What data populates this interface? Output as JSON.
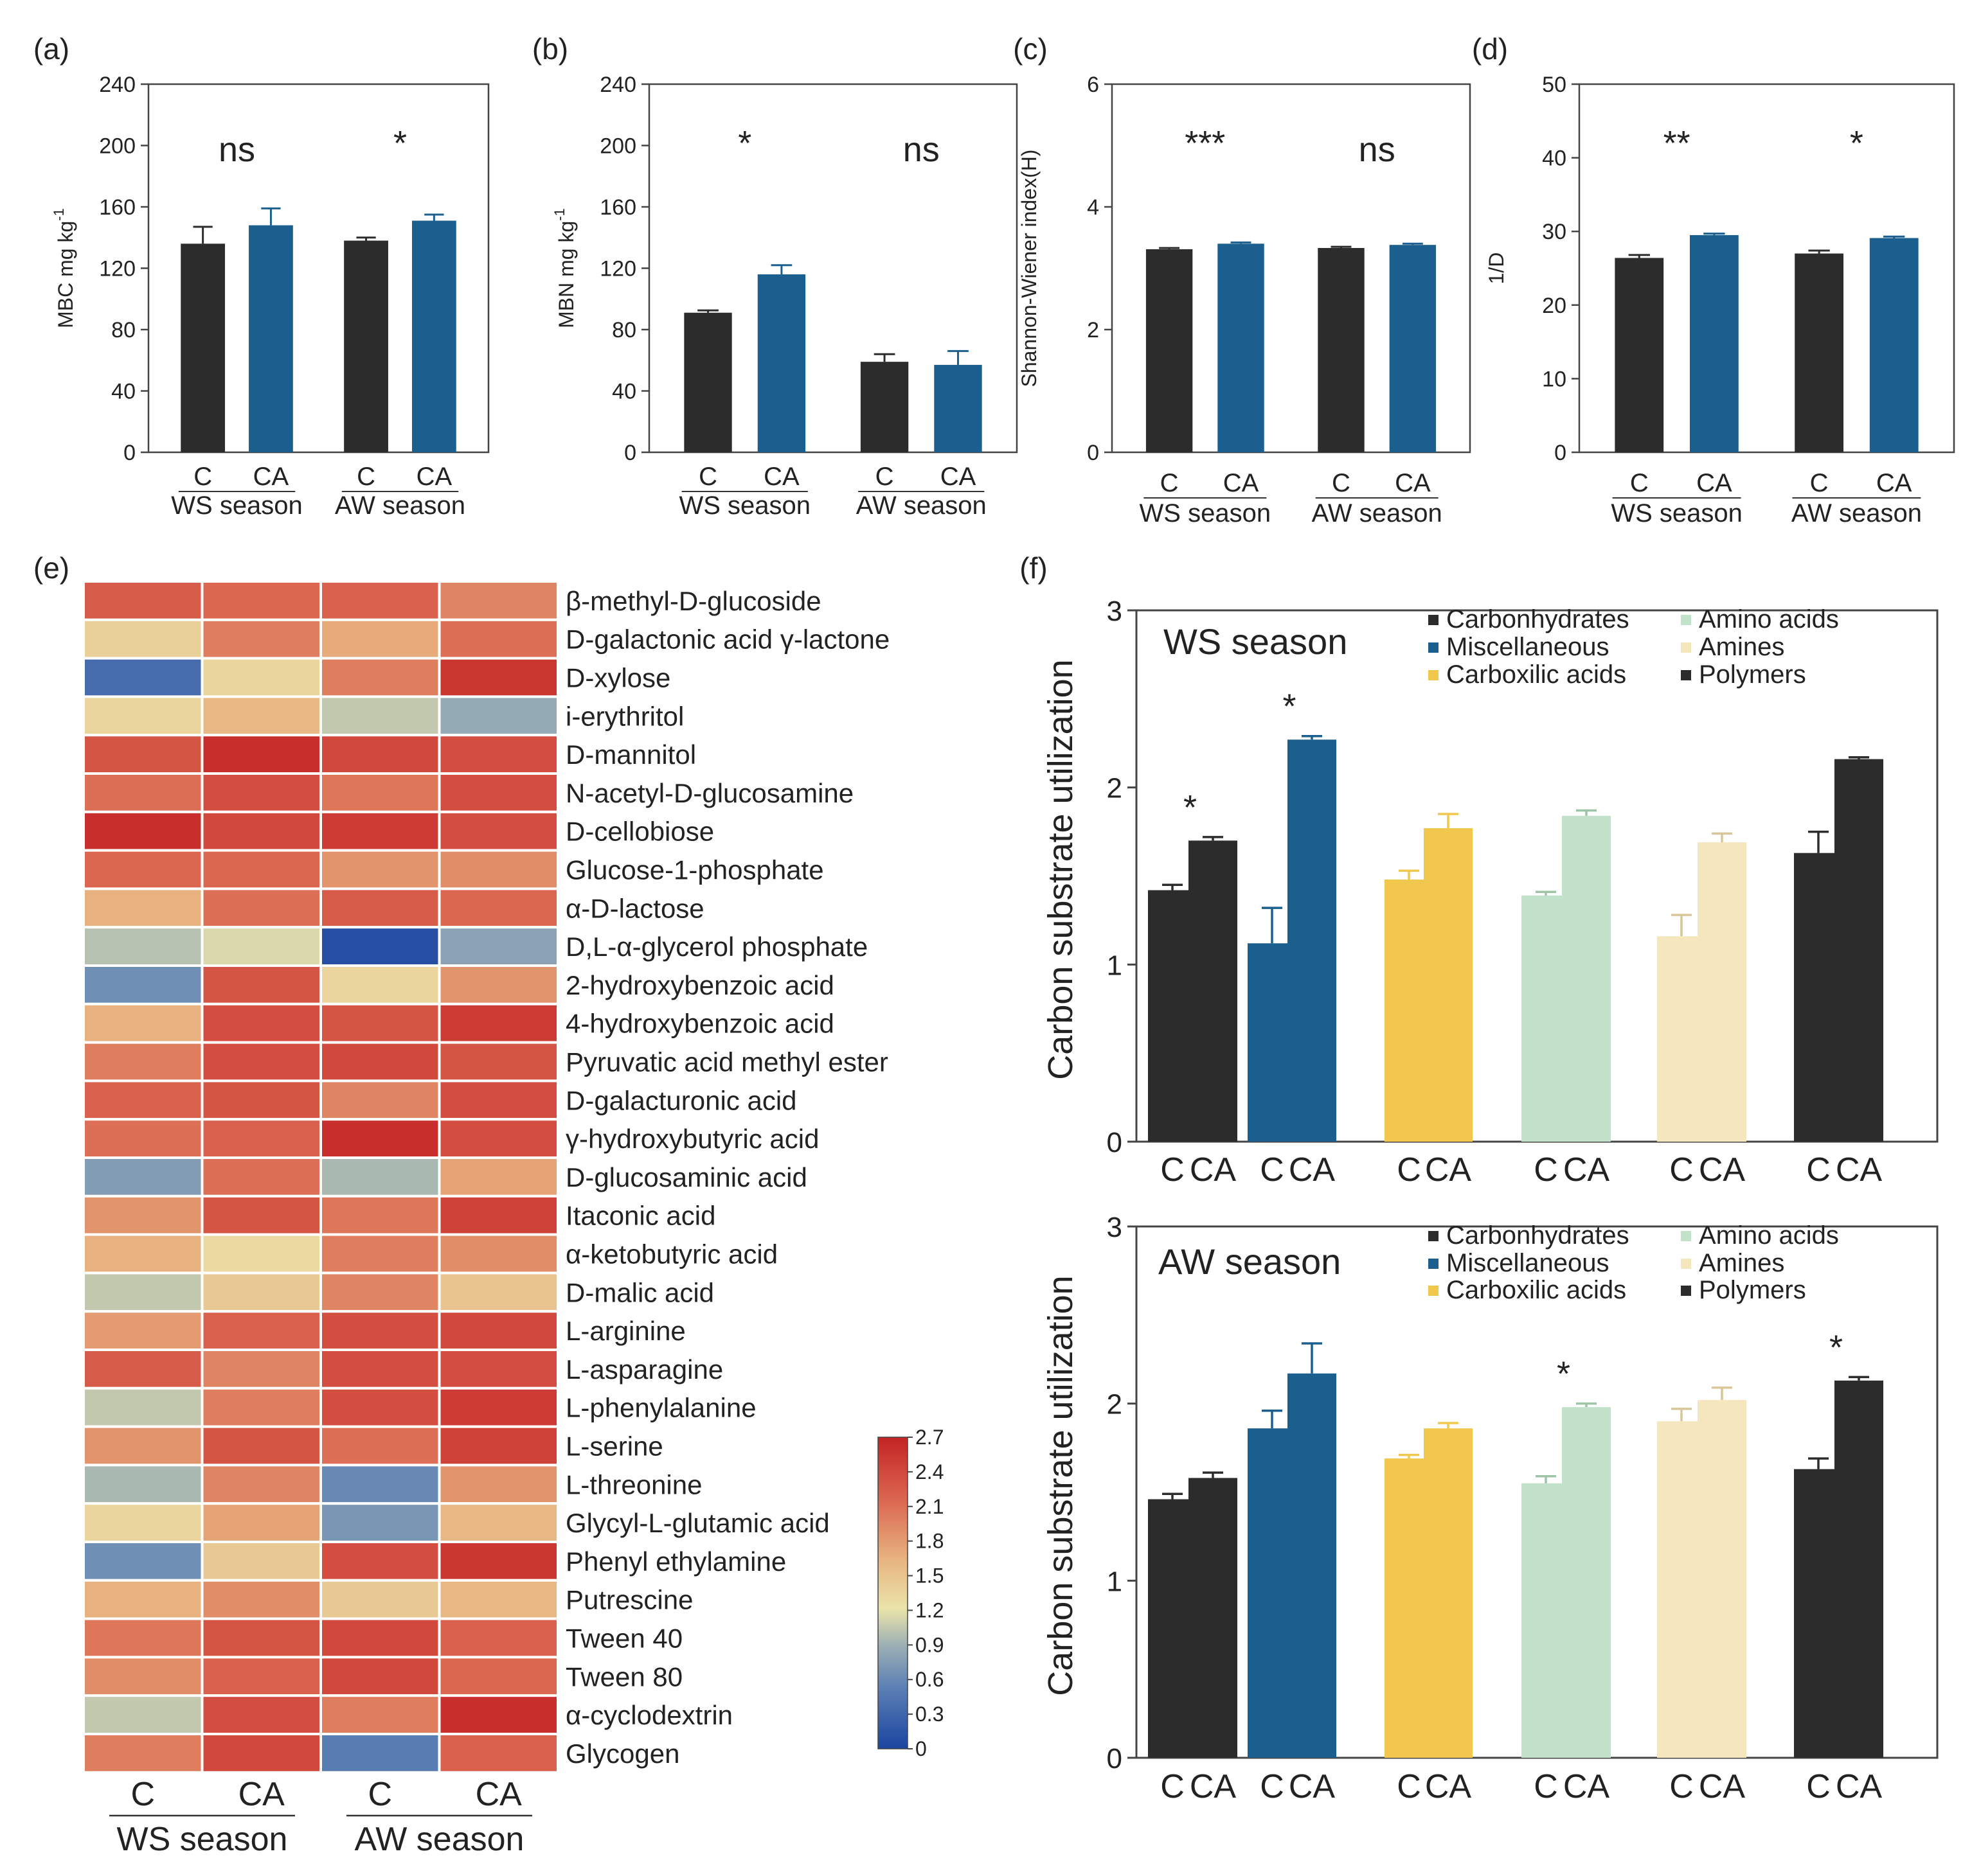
{
  "chart_data": [
    {
      "panel": "(a)",
      "type": "bar",
      "ylabel": "MBC mg kg",
      "ylabel_sup": "-1",
      "ylim": [
        0,
        240
      ],
      "yticks": [
        0,
        40,
        80,
        120,
        160,
        200,
        240
      ],
      "groups": [
        {
          "season": "WS season",
          "sig": "ns",
          "bars": [
            {
              "label": "C",
              "value": 136,
              "err": 11
            },
            {
              "label": "CA",
              "value": 148,
              "err": 11
            }
          ]
        },
        {
          "season": "AW season",
          "sig": "*",
          "bars": [
            {
              "label": "C",
              "value": 138,
              "err": 2
            },
            {
              "label": "CA",
              "value": 151,
              "err": 4
            }
          ]
        }
      ]
    },
    {
      "panel": "(b)",
      "type": "bar",
      "ylabel": "MBN mg kg",
      "ylabel_sup": "-1",
      "ylim": [
        0,
        240
      ],
      "yticks": [
        0,
        40,
        80,
        120,
        160,
        200,
        240
      ],
      "groups": [
        {
          "season": "WS season",
          "sig": "*",
          "bars": [
            {
              "label": "C",
              "value": 91,
              "err": 1.5
            },
            {
              "label": "CA",
              "value": 116,
              "err": 6
            }
          ]
        },
        {
          "season": "AW season",
          "sig": "ns",
          "bars": [
            {
              "label": "C",
              "value": 59,
              "err": 5
            },
            {
              "label": "CA",
              "value": 57,
              "err": 9
            }
          ]
        }
      ]
    },
    {
      "panel": "(c)",
      "type": "bar",
      "ylabel": "Shannon-Wiener index(H)",
      "ylabel_sup": "",
      "ylim": [
        0,
        6
      ],
      "yticks": [
        0,
        2,
        4,
        6
      ],
      "groups": [
        {
          "season": "WS season",
          "sig": "***",
          "bars": [
            {
              "label": "C",
              "value": 3.31,
              "err": 0.02
            },
            {
              "label": "CA",
              "value": 3.4,
              "err": 0.02
            }
          ]
        },
        {
          "season": "AW season",
          "sig": "ns",
          "bars": [
            {
              "label": "C",
              "value": 3.33,
              "err": 0.02
            },
            {
              "label": "CA",
              "value": 3.38,
              "err": 0.02
            }
          ]
        }
      ]
    },
    {
      "panel": "(d)",
      "type": "bar",
      "ylabel": "1/D",
      "ylabel_sup": "",
      "ylim": [
        0,
        50
      ],
      "yticks": [
        0,
        10,
        20,
        30,
        40,
        50
      ],
      "groups": [
        {
          "season": "WS season",
          "sig": "**",
          "bars": [
            {
              "label": "C",
              "value": 26.4,
              "err": 0.4
            },
            {
              "label": "CA",
              "value": 29.5,
              "err": 0.2
            }
          ]
        },
        {
          "season": "AW season",
          "sig": "*",
          "bars": [
            {
              "label": "C",
              "value": 27.0,
              "err": 0.4
            },
            {
              "label": "CA",
              "value": 29.1,
              "err": 0.2
            }
          ]
        }
      ]
    },
    {
      "panel": "(e)",
      "type": "heatmap",
      "columns": [
        "C",
        "CA",
        "C",
        "CA"
      ],
      "column_groups": [
        "WS season",
        "AW season"
      ],
      "colorbar": {
        "min": 0,
        "max": 2.7,
        "ticks": [
          "2.7",
          "2.4",
          "2.1",
          "1.8",
          "1.5",
          "1.2",
          "0.9",
          "0.6",
          "0.3",
          "0"
        ]
      },
      "rows": [
        {
          "name": "β-methyl-D-glucoside",
          "values": [
            2.25,
            2.15,
            2.2,
            1.95
          ]
        },
        {
          "name": "D-galactonic acid γ-lactone",
          "values": [
            1.4,
            2.0,
            1.7,
            2.1
          ]
        },
        {
          "name": "D-xylose",
          "values": [
            0.35,
            1.35,
            2.0,
            2.55
          ]
        },
        {
          "name": "i-erythritol",
          "values": [
            1.35,
            1.6,
            1.05,
            0.85
          ]
        },
        {
          "name": "D-mannitol",
          "values": [
            2.3,
            2.6,
            2.4,
            2.35
          ]
        },
        {
          "name": "N-acetyl-D-glucosamine",
          "values": [
            2.1,
            2.35,
            2.05,
            2.35
          ]
        },
        {
          "name": "D-cellobiose",
          "values": [
            2.6,
            2.4,
            2.5,
            2.35
          ]
        },
        {
          "name": "Glucose-1-phosphate",
          "values": [
            2.15,
            2.15,
            1.85,
            1.9
          ]
        },
        {
          "name": "α-D-lactose",
          "values": [
            1.65,
            2.1,
            2.25,
            2.15
          ]
        },
        {
          "name": "D,L-α-glycerol phosphate",
          "values": [
            1.0,
            1.15,
            0.1,
            0.8
          ]
        },
        {
          "name": "2-hydroxybenzoic acid",
          "values": [
            0.65,
            2.3,
            1.35,
            1.85
          ]
        },
        {
          "name": "4-hydroxybenzoic acid",
          "values": [
            1.65,
            2.35,
            2.3,
            2.5
          ]
        },
        {
          "name": "Pyruvatic acid methyl ester",
          "values": [
            2.0,
            2.35,
            2.4,
            2.3
          ]
        },
        {
          "name": "D-galacturonic acid",
          "values": [
            2.2,
            2.3,
            1.95,
            2.35
          ]
        },
        {
          "name": "γ-hydroxybutyric acid",
          "values": [
            2.1,
            2.2,
            2.6,
            2.35
          ]
        },
        {
          "name": "D-glucosaminic acid",
          "values": [
            0.75,
            2.1,
            0.95,
            1.75
          ]
        },
        {
          "name": "Itaconic acid",
          "values": [
            1.85,
            2.3,
            2.05,
            2.45
          ]
        },
        {
          "name": "α-ketobutyric acid",
          "values": [
            1.65,
            1.3,
            2.0,
            1.9
          ]
        },
        {
          "name": "D-malic acid",
          "values": [
            1.05,
            1.45,
            1.95,
            1.5
          ]
        },
        {
          "name": "L-arginine",
          "values": [
            1.8,
            2.2,
            2.35,
            2.4
          ]
        },
        {
          "name": "L-asparagine",
          "values": [
            2.25,
            1.95,
            2.35,
            2.35
          ]
        },
        {
          "name": "L-phenylalanine",
          "values": [
            1.05,
            2.0,
            2.35,
            2.5
          ]
        },
        {
          "name": "L-serine",
          "values": [
            1.85,
            2.3,
            2.1,
            2.45
          ]
        },
        {
          "name": "L-threonine",
          "values": [
            0.95,
            1.95,
            0.6,
            1.85
          ]
        },
        {
          "name": "Glycyl-L-glutamic acid",
          "values": [
            1.35,
            1.75,
            0.7,
            1.6
          ]
        },
        {
          "name": "Phenyl ethylamine",
          "values": [
            0.65,
            1.45,
            2.35,
            2.55
          ]
        },
        {
          "name": "Putrescine",
          "values": [
            1.65,
            1.9,
            1.45,
            1.6
          ]
        },
        {
          "name": "Tween 40",
          "values": [
            2.05,
            2.3,
            2.4,
            2.2
          ]
        },
        {
          "name": "Tween 80",
          "values": [
            1.9,
            2.2,
            2.4,
            2.15
          ]
        },
        {
          "name": "α-cyclodextrin",
          "values": [
            1.05,
            2.35,
            2.0,
            2.6
          ]
        },
        {
          "name": "Glycogen",
          "values": [
            2.0,
            2.4,
            0.5,
            2.2
          ]
        }
      ]
    },
    {
      "panel": "(f)",
      "type": "bar",
      "title": "WS season",
      "ylabel": "Carbon substrate utilization",
      "ylim": [
        0,
        3
      ],
      "yticks": [
        0,
        1,
        2,
        3
      ],
      "legend": [
        {
          "name": "Carbonhydrates",
          "color": "#2c2c2c"
        },
        {
          "name": "Miscellaneous",
          "color": "#1a5f8e"
        },
        {
          "name": "Carboxilic acids",
          "color": "#f1c84d"
        },
        {
          "name": "Amino acids",
          "color": "#c3e2cb"
        },
        {
          "name": "Amines",
          "color": "#f5e6bd"
        },
        {
          "name": "Polymers",
          "color": "#2c2c2c"
        }
      ],
      "groups": [
        {
          "name": "Carbonhydrates",
          "sig": "*",
          "bars": [
            {
              "label": "C",
              "value": 1.42,
              "err": 0.03
            },
            {
              "label": "CA",
              "value": 1.7,
              "err": 0.02
            }
          ]
        },
        {
          "name": "Miscellaneous",
          "sig": "*",
          "bars": [
            {
              "label": "C",
              "value": 1.12,
              "err": 0.2
            },
            {
              "label": "CA",
              "value": 2.27,
              "err": 0.02
            }
          ]
        },
        {
          "name": "Carboxilic acids",
          "sig": "",
          "bars": [
            {
              "label": "C",
              "value": 1.48,
              "err": 0.05
            },
            {
              "label": "CA",
              "value": 1.77,
              "err": 0.08
            }
          ]
        },
        {
          "name": "Amino acids",
          "sig": "",
          "bars": [
            {
              "label": "C",
              "value": 1.39,
              "err": 0.02
            },
            {
              "label": "CA",
              "value": 1.84,
              "err": 0.03
            }
          ]
        },
        {
          "name": "Amines",
          "sig": "",
          "bars": [
            {
              "label": "C",
              "value": 1.16,
              "err": 0.12
            },
            {
              "label": "CA",
              "value": 1.69,
              "err": 0.05
            }
          ]
        },
        {
          "name": "Polymers",
          "sig": "",
          "bars": [
            {
              "label": "C",
              "value": 1.63,
              "err": 0.12
            },
            {
              "label": "CA",
              "value": 2.16,
              "err": 0.01
            }
          ]
        }
      ]
    },
    {
      "panel": "(f)",
      "type": "bar",
      "title": "AW season",
      "ylabel": "Carbon substrate utilization",
      "ylim": [
        0,
        3
      ],
      "yticks": [
        0,
        1,
        2,
        3
      ],
      "legend": [
        {
          "name": "Carbonhydrates",
          "color": "#2c2c2c"
        },
        {
          "name": "Miscellaneous",
          "color": "#1a5f8e"
        },
        {
          "name": "Carboxilic acids",
          "color": "#f1c84d"
        },
        {
          "name": "Amino acids",
          "color": "#c3e2cb"
        },
        {
          "name": "Amines",
          "color": "#f5e6bd"
        },
        {
          "name": "Polymers",
          "color": "#2c2c2c"
        }
      ],
      "groups": [
        {
          "name": "Carbonhydrates",
          "sig": "",
          "bars": [
            {
              "label": "C",
              "value": 1.46,
              "err": 0.03
            },
            {
              "label": "CA",
              "value": 1.58,
              "err": 0.03
            }
          ]
        },
        {
          "name": "Miscellaneous",
          "sig": "",
          "bars": [
            {
              "label": "C",
              "value": 1.86,
              "err": 0.1
            },
            {
              "label": "CA",
              "value": 2.17,
              "err": 0.17
            }
          ]
        },
        {
          "name": "Carboxilic acids",
          "sig": "",
          "bars": [
            {
              "label": "C",
              "value": 1.69,
              "err": 0.02
            },
            {
              "label": "CA",
              "value": 1.86,
              "err": 0.03
            }
          ]
        },
        {
          "name": "Amino acids",
          "sig": "*",
          "bars": [
            {
              "label": "C",
              "value": 1.55,
              "err": 0.04
            },
            {
              "label": "CA",
              "value": 1.98,
              "err": 0.02
            }
          ]
        },
        {
          "name": "Amines",
          "sig": "",
          "bars": [
            {
              "label": "C",
              "value": 1.9,
              "err": 0.07
            },
            {
              "label": "CA",
              "value": 2.02,
              "err": 0.07
            }
          ]
        },
        {
          "name": "Polymers",
          "sig": "*",
          "bars": [
            {
              "label": "C",
              "value": 1.63,
              "err": 0.06
            },
            {
              "label": "CA",
              "value": 2.13,
              "err": 0.02
            }
          ]
        }
      ]
    }
  ]
}
